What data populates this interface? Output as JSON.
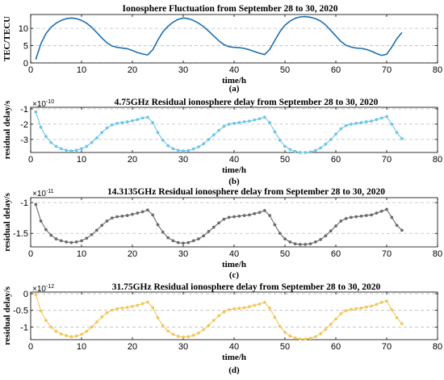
{
  "chart_data": [
    {
      "panel": "(a)",
      "type": "line",
      "title": "Ionosphere Fluctuation from September 28 to 30, 2020",
      "xlabel": "time/h",
      "ylabel": "TEC/TECU",
      "xlim": [
        0,
        80
      ],
      "ylim": [
        0,
        14
      ],
      "xticks": [
        "0",
        "10",
        "20",
        "30",
        "40",
        "50",
        "60",
        "70",
        "80"
      ],
      "yticks": [
        "0",
        "5",
        "10"
      ],
      "ytick_values": [
        0,
        5,
        10
      ],
      "grid": "dashed horizontal",
      "color": "#1f6fad",
      "markers": false,
      "x": [
        1,
        2,
        3,
        4,
        5,
        6,
        7,
        8,
        9,
        10,
        11,
        12,
        13,
        14,
        15,
        16,
        17,
        18,
        19,
        20,
        21,
        22,
        23,
        24,
        25,
        26,
        27,
        28,
        29,
        30,
        31,
        32,
        33,
        34,
        35,
        36,
        37,
        38,
        39,
        40,
        41,
        42,
        43,
        44,
        45,
        46,
        47,
        48,
        49,
        50,
        51,
        52,
        53,
        54,
        55,
        56,
        57,
        58,
        59,
        60,
        61,
        62,
        63,
        64,
        65,
        66,
        67,
        68,
        69,
        70,
        71,
        72,
        73
      ],
      "values": [
        1.0,
        5.5,
        8.5,
        10.3,
        11.5,
        12.3,
        12.8,
        13.0,
        12.8,
        12.3,
        11.5,
        10.3,
        8.8,
        7.2,
        5.8,
        4.9,
        4.5,
        4.3,
        4.1,
        3.6,
        3.0,
        2.6,
        2.3,
        3.8,
        6.6,
        9.0,
        10.6,
        11.8,
        12.6,
        13.0,
        12.8,
        12.3,
        11.5,
        10.5,
        9.2,
        7.8,
        6.4,
        5.3,
        4.7,
        4.5,
        4.4,
        4.2,
        3.8,
        3.3,
        2.8,
        2.4,
        3.9,
        6.5,
        9.0,
        10.9,
        12.1,
        12.9,
        13.3,
        13.4,
        13.2,
        12.8,
        12.1,
        11.0,
        9.4,
        7.8,
        6.2,
        5.1,
        4.6,
        4.3,
        4.2,
        3.9,
        3.4,
        2.7,
        2.2,
        2.5,
        4.6,
        7.0,
        8.8
      ]
    },
    {
      "panel": "(b)",
      "type": "line",
      "title": "4.75GHz   Residual ionosphere delay from September 28 to 30, 2020",
      "multiplier_base": "×10",
      "multiplier_exp": "-10",
      "xlabel": "time/h",
      "ylabel": "residual delay/s",
      "xlim": [
        0,
        80
      ],
      "ylim": [
        -3.85,
        -0.9
      ],
      "xticks": [
        "0",
        "10",
        "20",
        "30",
        "40",
        "50",
        "60",
        "70",
        "80"
      ],
      "yticks": [
        "-1",
        "-2",
        "-3"
      ],
      "ytick_values": [
        -1,
        -2,
        -3
      ],
      "grid": "dashed horizontal",
      "color": "#6ec6e8",
      "markers": true,
      "x": [
        1,
        2,
        3,
        4,
        5,
        6,
        7,
        8,
        9,
        10,
        11,
        12,
        13,
        14,
        15,
        16,
        17,
        18,
        19,
        20,
        21,
        22,
        23,
        24,
        25,
        26,
        27,
        28,
        29,
        30,
        31,
        32,
        33,
        34,
        35,
        36,
        37,
        38,
        39,
        40,
        41,
        42,
        43,
        44,
        45,
        46,
        47,
        48,
        49,
        50,
        51,
        52,
        53,
        54,
        55,
        56,
        57,
        58,
        59,
        60,
        61,
        62,
        63,
        64,
        65,
        66,
        67,
        68,
        69,
        70,
        71,
        72,
        73
      ],
      "values": [
        -1.2,
        -2.2,
        -2.8,
        -3.2,
        -3.45,
        -3.6,
        -3.7,
        -3.75,
        -3.7,
        -3.6,
        -3.45,
        -3.2,
        -2.9,
        -2.55,
        -2.25,
        -2.05,
        -1.95,
        -1.9,
        -1.85,
        -1.78,
        -1.7,
        -1.6,
        -1.55,
        -1.9,
        -2.55,
        -3.05,
        -3.4,
        -3.6,
        -3.7,
        -3.75,
        -3.72,
        -3.62,
        -3.48,
        -3.28,
        -3.0,
        -2.7,
        -2.4,
        -2.15,
        -2.0,
        -1.95,
        -1.9,
        -1.85,
        -1.8,
        -1.72,
        -1.65,
        -1.55,
        -1.9,
        -2.5,
        -3.05,
        -3.45,
        -3.65,
        -3.78,
        -3.85,
        -3.85,
        -3.82,
        -3.72,
        -3.55,
        -3.3,
        -3.0,
        -2.65,
        -2.3,
        -2.1,
        -2.0,
        -1.95,
        -1.9,
        -1.85,
        -1.8,
        -1.7,
        -1.6,
        -1.5,
        -2.0,
        -2.55,
        -2.95
      ]
    },
    {
      "panel": "(c)",
      "type": "line",
      "title": "14.3135GHz   Residual ionosphere delay from September 28 to 30, 2020",
      "multiplier_base": "×10",
      "multiplier_exp": "-11",
      "xlabel": "time/h",
      "ylabel": "residual delay/s",
      "xlim": [
        0,
        80
      ],
      "ylim": [
        -1.72,
        -0.92
      ],
      "xticks": [
        "0",
        "10",
        "20",
        "30",
        "40",
        "50",
        "60",
        "70",
        "80"
      ],
      "yticks": [
        "-1",
        "-1.5"
      ],
      "ytick_values": [
        -1,
        -1.5
      ],
      "grid": "dashed horizontal",
      "color": "#6b6b6b",
      "markers": true,
      "x": [
        1,
        2,
        3,
        4,
        5,
        6,
        7,
        8,
        9,
        10,
        11,
        12,
        13,
        14,
        15,
        16,
        17,
        18,
        19,
        20,
        21,
        22,
        23,
        24,
        25,
        26,
        27,
        28,
        29,
        30,
        31,
        32,
        33,
        34,
        35,
        36,
        37,
        38,
        39,
        40,
        41,
        42,
        43,
        44,
        45,
        46,
        47,
        48,
        49,
        50,
        51,
        52,
        53,
        54,
        55,
        56,
        57,
        58,
        59,
        60,
        61,
        62,
        63,
        64,
        65,
        66,
        67,
        68,
        69,
        70,
        71,
        72,
        73
      ],
      "values": [
        -1.03,
        -1.3,
        -1.44,
        -1.53,
        -1.59,
        -1.62,
        -1.64,
        -1.65,
        -1.64,
        -1.62,
        -1.58,
        -1.52,
        -1.45,
        -1.37,
        -1.3,
        -1.25,
        -1.23,
        -1.22,
        -1.21,
        -1.19,
        -1.17,
        -1.15,
        -1.12,
        -1.2,
        -1.36,
        -1.48,
        -1.57,
        -1.62,
        -1.65,
        -1.66,
        -1.65,
        -1.62,
        -1.59,
        -1.54,
        -1.47,
        -1.4,
        -1.33,
        -1.27,
        -1.24,
        -1.23,
        -1.22,
        -1.21,
        -1.2,
        -1.18,
        -1.16,
        -1.13,
        -1.21,
        -1.36,
        -1.5,
        -1.59,
        -1.64,
        -1.67,
        -1.68,
        -1.68,
        -1.67,
        -1.64,
        -1.6,
        -1.54,
        -1.46,
        -1.38,
        -1.3,
        -1.26,
        -1.24,
        -1.23,
        -1.22,
        -1.21,
        -1.2,
        -1.17,
        -1.14,
        -1.11,
        -1.24,
        -1.37,
        -1.45
      ]
    },
    {
      "panel": "(d)",
      "type": "line",
      "title": "31.75GHz   Residual ionosphere delay from September 28 to 30, 2020",
      "multiplier_base": "×10",
      "multiplier_exp": "-12",
      "xlabel": "time/h",
      "ylabel": "residual delay/s",
      "xlim": [
        0,
        80
      ],
      "ylim": [
        -1.38,
        0.05
      ],
      "xticks": [
        "0",
        "10",
        "20",
        "30",
        "40",
        "50",
        "60",
        "70",
        "80"
      ],
      "yticks": [
        "0",
        "-0.5",
        "-1"
      ],
      "ytick_values": [
        0,
        -0.5,
        -1
      ],
      "grid": "dashed horizontal",
      "color": "#f2c75c",
      "markers": true,
      "x": [
        1,
        2,
        3,
        4,
        5,
        6,
        7,
        8,
        9,
        10,
        11,
        12,
        13,
        14,
        15,
        16,
        17,
        18,
        19,
        20,
        21,
        22,
        23,
        24,
        25,
        26,
        27,
        28,
        29,
        30,
        31,
        32,
        33,
        34,
        35,
        36,
        37,
        38,
        39,
        40,
        41,
        42,
        43,
        44,
        45,
        46,
        47,
        48,
        49,
        50,
        51,
        52,
        53,
        54,
        55,
        56,
        57,
        58,
        59,
        60,
        61,
        62,
        63,
        64,
        65,
        66,
        67,
        68,
        69,
        70,
        71,
        72,
        73
      ],
      "values": [
        -0.02,
        -0.52,
        -0.8,
        -1.0,
        -1.13,
        -1.21,
        -1.26,
        -1.29,
        -1.27,
        -1.22,
        -1.13,
        -1.0,
        -0.85,
        -0.7,
        -0.57,
        -0.49,
        -0.45,
        -0.43,
        -0.41,
        -0.38,
        -0.35,
        -0.3,
        -0.25,
        -0.42,
        -0.72,
        -0.96,
        -1.12,
        -1.22,
        -1.28,
        -1.3,
        -1.29,
        -1.25,
        -1.18,
        -1.08,
        -0.95,
        -0.8,
        -0.66,
        -0.55,
        -0.48,
        -0.45,
        -0.44,
        -0.42,
        -0.39,
        -0.35,
        -0.31,
        -0.26,
        -0.43,
        -0.71,
        -0.98,
        -1.16,
        -1.27,
        -1.33,
        -1.36,
        -1.36,
        -1.34,
        -1.29,
        -1.2,
        -1.07,
        -0.92,
        -0.76,
        -0.6,
        -0.51,
        -0.47,
        -0.45,
        -0.43,
        -0.4,
        -0.37,
        -0.32,
        -0.26,
        -0.22,
        -0.48,
        -0.72,
        -0.9
      ]
    }
  ]
}
